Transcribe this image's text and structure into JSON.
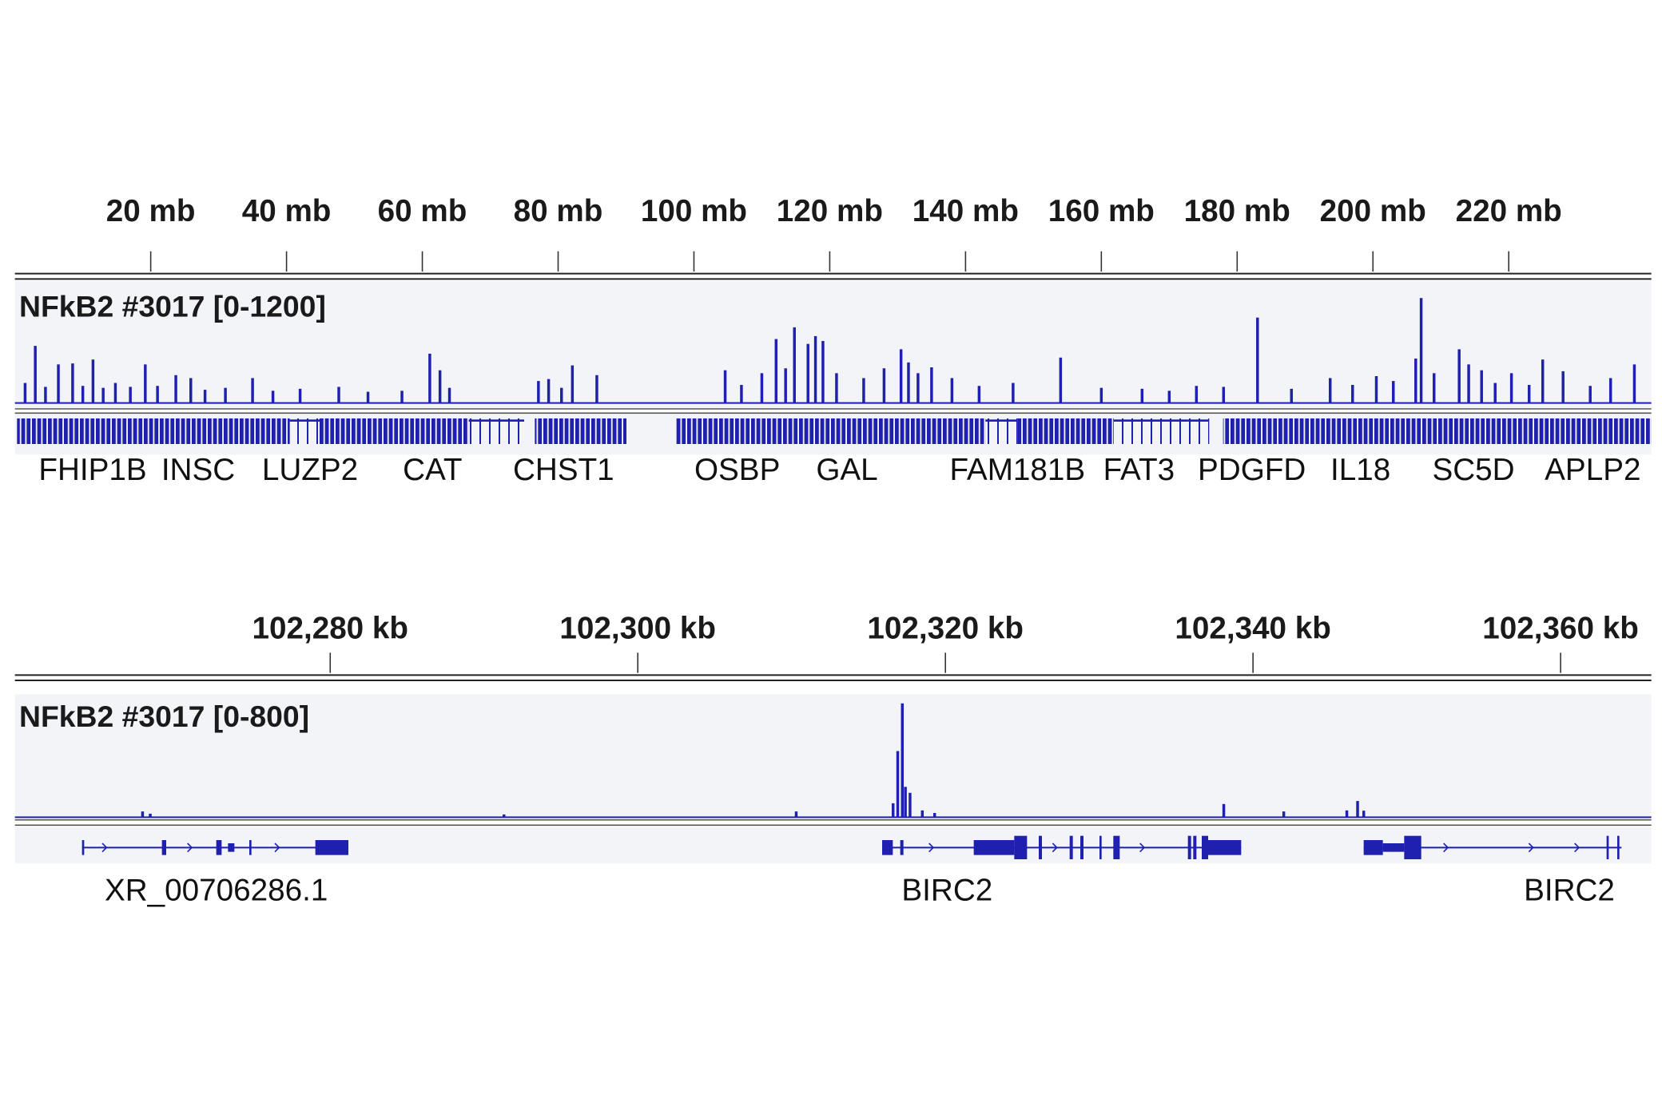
{
  "chart_data": [
    {
      "type": "coverage",
      "title": "NFkB2 #3017 [0-1200]",
      "color": "#1f1fb0",
      "xlim": [
        0,
        241
      ],
      "ylim": [
        0,
        1200
      ],
      "xticks": [
        {
          "value": 20,
          "label": "20 mb"
        },
        {
          "value": 40,
          "label": "40 mb"
        },
        {
          "value": 60,
          "label": "60 mb"
        },
        {
          "value": 80,
          "label": "80 mb"
        },
        {
          "value": 100,
          "label": "100 mb"
        },
        {
          "value": 120,
          "label": "120 mb"
        },
        {
          "value": 140,
          "label": "140 mb"
        },
        {
          "value": 160,
          "label": "160 mb"
        },
        {
          "value": 180,
          "label": "180 mb"
        },
        {
          "value": 200,
          "label": "200 mb"
        },
        {
          "value": 220,
          "label": "220 mb"
        }
      ],
      "x": [
        1.5,
        3.0,
        4.5,
        6.4,
        8.5,
        10.0,
        11.5,
        13.0,
        14.8,
        17.0,
        19.2,
        21.0,
        23.7,
        25.9,
        28.0,
        31.0,
        35.0,
        38.0,
        42.0,
        47.7,
        52.0,
        57.0,
        61.1,
        62.6,
        64.0,
        77.1,
        78.6,
        80.5,
        82.1,
        85.7,
        104.6,
        107.0,
        110.0,
        112.1,
        113.5,
        114.8,
        116.8,
        117.9,
        119.0,
        121.0,
        125.0,
        128.0,
        130.5,
        131.6,
        133.0,
        135.0,
        138.0,
        142.0,
        147.0,
        154.0,
        160.0,
        166.0,
        170.0,
        174.0,
        178.0,
        183.0,
        188.0,
        193.7,
        197.0,
        200.5,
        203.0,
        206.3,
        207.1,
        209.0,
        212.7,
        214.1,
        216.0,
        218.0,
        220.4,
        223.0,
        225.0,
        228.0,
        232.0,
        235.0,
        238.5
      ],
      "values": [
        200,
        580,
        160,
        390,
        400,
        170,
        440,
        150,
        200,
        160,
        390,
        170,
        280,
        250,
        130,
        150,
        250,
        120,
        140,
        160,
        110,
        120,
        500,
        330,
        150,
        220,
        240,
        150,
        380,
        280,
        330,
        180,
        300,
        650,
        350,
        770,
        600,
        680,
        630,
        300,
        250,
        350,
        545,
        410,
        300,
        360,
        250,
        170,
        200,
        460,
        150,
        140,
        120,
        170,
        160,
        870,
        140,
        250,
        180,
        270,
        220,
        450,
        1070,
        300,
        545,
        390,
        330,
        200,
        300,
        180,
        440,
        320,
        170,
        250,
        390
      ]
    },
    {
      "type": "coverage",
      "title": "NFkB2 #3017 [0-800]",
      "color": "#1f1fb0",
      "xlim": [
        102259.5,
        102365.9
      ],
      "ylim": [
        0,
        800
      ],
      "xticks": [
        {
          "value": 102280,
          "label": "102,280 kb"
        },
        {
          "value": 102300,
          "label": "102,300 kb"
        },
        {
          "value": 102320,
          "label": "102,320 kb"
        },
        {
          "value": 102340,
          "label": "102,340 kb"
        },
        {
          "value": 102360,
          "label": "102,360 kb"
        }
      ],
      "x": [
        102267.8,
        102268.3,
        102291.3,
        102310.3,
        102316.6,
        102316.9,
        102317.2,
        102317.4,
        102317.7,
        102318.5,
        102319.3,
        102338.1,
        102342.0,
        102346.1,
        102346.8,
        102347.2
      ],
      "values": [
        35,
        20,
        15,
        35,
        90,
        440,
        760,
        200,
        160,
        42,
        25,
        85,
        35,
        42,
        105,
        40
      ]
    }
  ],
  "gene_labels_top": [
    "FHIP1B",
    "INSC",
    "LUZP2",
    "CAT",
    "CHST1",
    "OSBP",
    "GAL",
    "FAM181B",
    "FAT3",
    "PDGFD",
    "IL18",
    "SC5D",
    "APLP2"
  ],
  "gene_labels_bottom": [
    "XR_00706286.1",
    "BIRC2",
    "BIRC2"
  ]
}
